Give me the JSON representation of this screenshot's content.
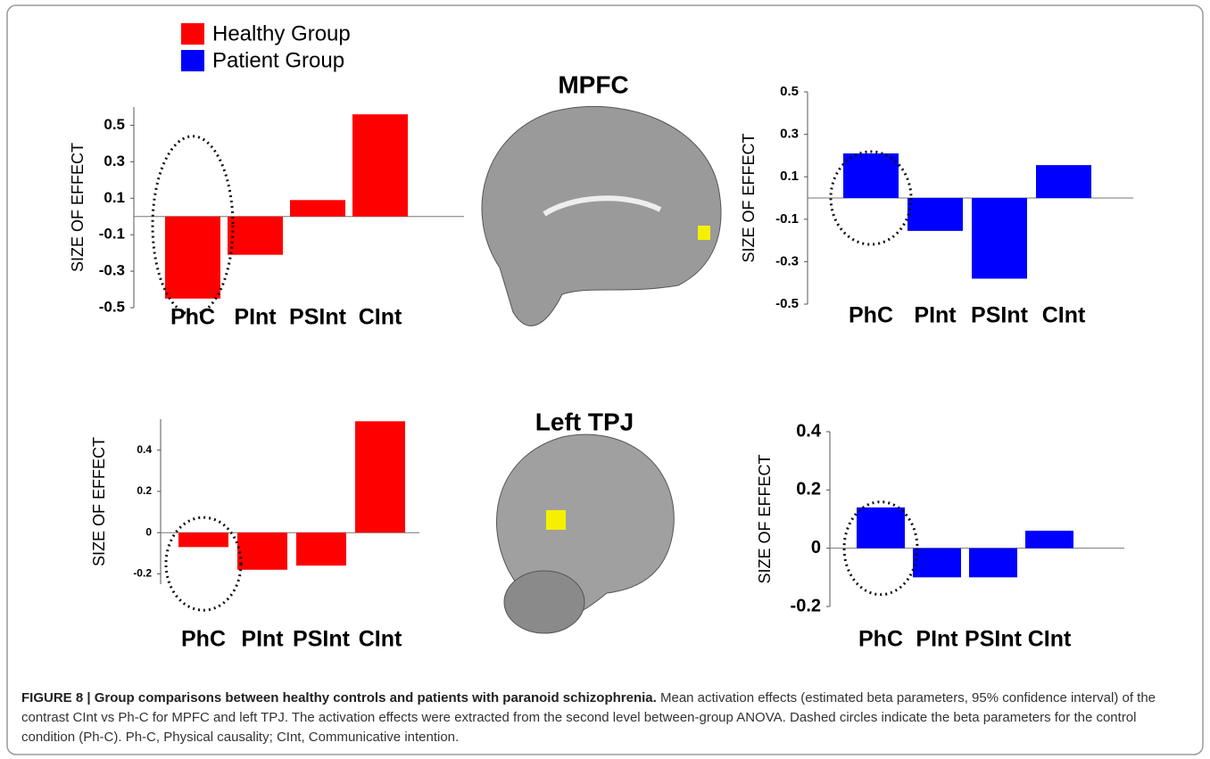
{
  "legend": [
    {
      "name": "Healthy Group",
      "color": "#ff0000"
    },
    {
      "name": "Patient Group",
      "color": "#0000ff"
    }
  ],
  "regions": [
    "MPFC",
    "Left TPJ"
  ],
  "chart_data": [
    {
      "type": "bar",
      "y_label": "SIZE OF EFFECT",
      "categories": [
        "PhC",
        "PInt",
        "PSInt",
        "CInt"
      ],
      "values": [
        -0.45,
        -0.21,
        0.09,
        0.56
      ],
      "color": "#ff0000",
      "ylim": [
        -0.5,
        0.6
      ],
      "yticks": [
        -0.5,
        -0.3,
        -0.1,
        0.1,
        0.3,
        0.5
      ]
    },
    {
      "type": "bar",
      "y_label": "SIZE OF EFFECT",
      "categories": [
        "PhC",
        "PInt",
        "PSInt",
        "CInt"
      ],
      "values": [
        0.21,
        -0.155,
        -0.38,
        0.155
      ],
      "color": "#0000ff",
      "ylim": [
        -0.5,
        0.5
      ],
      "yticks": [
        -0.5,
        -0.3,
        -0.1,
        0.1,
        0.3,
        0.5
      ]
    },
    {
      "type": "bar",
      "y_label": "SIZE OF EFFECT",
      "categories": [
        "PhC",
        "PInt",
        "PSInt",
        "CInt"
      ],
      "values": [
        -0.07,
        -0.18,
        -0.16,
        0.54
      ],
      "color": "#ff0000",
      "ylim": [
        -0.25,
        0.55
      ],
      "yticks": [
        -0.2,
        0,
        0.2,
        0.4
      ]
    },
    {
      "type": "bar",
      "y_label": "SIZE OF EFFECT",
      "categories": [
        "PhC",
        "PInt",
        "PSInt",
        "CInt"
      ],
      "values": [
        0.14,
        -0.1,
        -0.1,
        0.06
      ],
      "color": "#0000ff",
      "ylim": [
        -0.2,
        0.4
      ],
      "yticks": [
        -0.2,
        0,
        0.2,
        0.4
      ]
    }
  ],
  "caption": {
    "label": "FIGURE 8 | Group comparisons between healthy controls and patients with paranoid schizophrenia.",
    "text": "Mean activation effects (estimated beta parameters, 95% confidence interval) of the contrast CInt vs Ph-C for MPFC and left TPJ. The activation effects were extracted from the second level between-group ANOVA. Dashed circles indicate the beta parameters for the control condition (Ph-C). Ph-C, Physical causality; CInt, Communicative intention."
  }
}
